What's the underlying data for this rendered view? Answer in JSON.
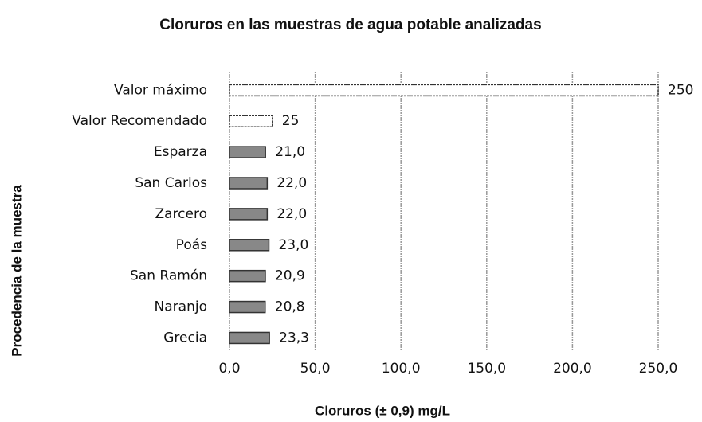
{
  "chart_data": {
    "type": "bar",
    "orientation": "horizontal",
    "title": "Cloruros en las muestras de agua potable analizadas",
    "x_label": "Cloruros (± 0,9) mg/L",
    "y_label": "Procedencia de la muestra",
    "categories": [
      "Valor máximo",
      "Valor Recomendado",
      "Esparza",
      "San Carlos",
      "Zarcero",
      "Poás",
      "San Ramón",
      "Naranjo",
      "Grecia"
    ],
    "values": [
      250,
      25,
      21.0,
      22.0,
      22.0,
      23.0,
      20.9,
      20.8,
      23.3
    ],
    "value_labels": [
      "250",
      "25",
      "21,0",
      "22,0",
      "22,0",
      "23,0",
      "20,9",
      "20,8",
      "23,3"
    ],
    "colors": [
      "#ffffff",
      "#ffffff",
      "#888888",
      "#888888",
      "#888888",
      "#888888",
      "#888888",
      "#888888",
      "#888888"
    ],
    "xlim": [
      0,
      250
    ],
    "xticks": [
      {
        "value": 0,
        "label": "0,0"
      },
      {
        "value": 50,
        "label": "50,0"
      },
      {
        "value": 100,
        "label": "100,0"
      },
      {
        "value": 150,
        "label": "150,0"
      },
      {
        "value": 200,
        "label": "200,0"
      },
      {
        "value": 250,
        "label": "250,0"
      }
    ],
    "grid": true
  }
}
